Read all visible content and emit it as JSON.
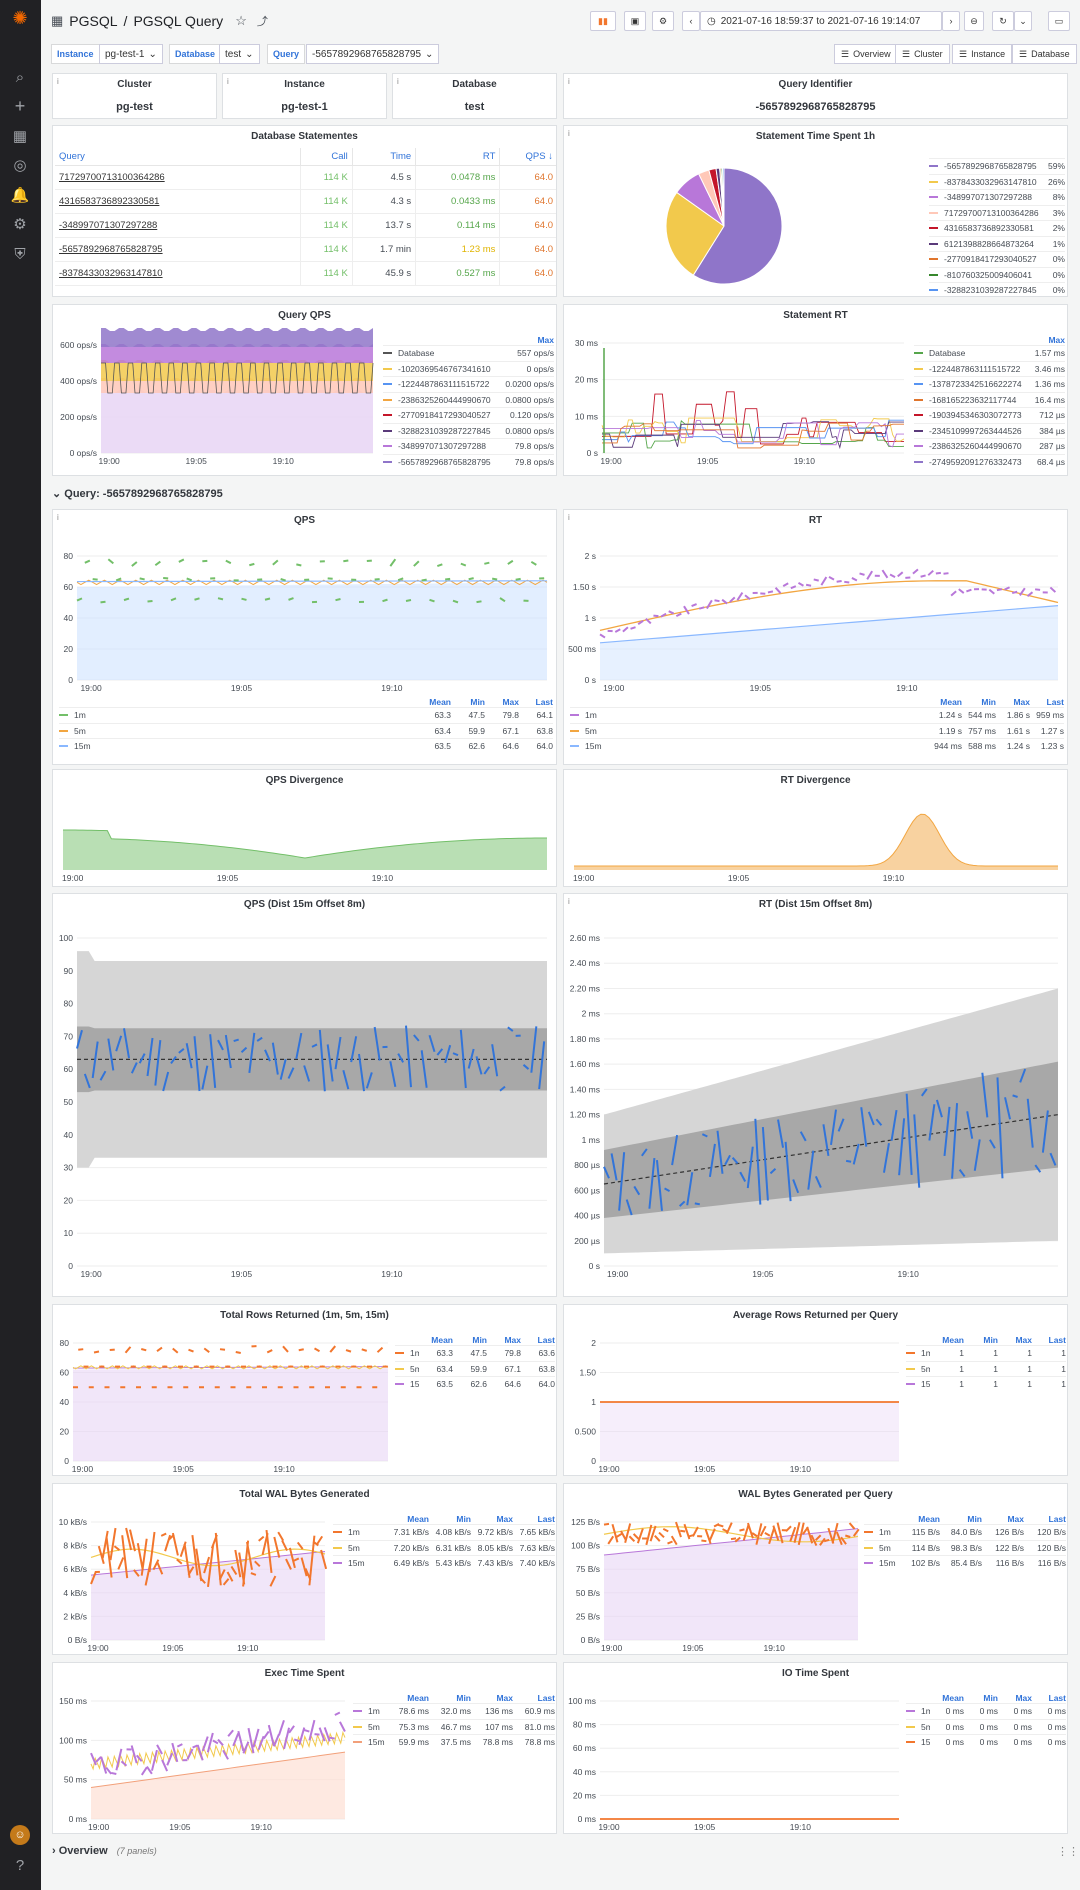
{
  "nav": {
    "breadcrumb_root": "PGSQL",
    "breadcrumb_sep": "/",
    "title": "PGSQL Query",
    "time_range": "2021-07-16 18:59:37 to 2021-07-16 19:14:07"
  },
  "vars": [
    {
      "label": "Instance",
      "value": "pg-test-1"
    },
    {
      "label": "Database",
      "value": "test"
    },
    {
      "label": "Query",
      "value": "-5657892968765828795"
    }
  ],
  "links": [
    "Overview",
    "Cluster",
    "Instance",
    "Database"
  ],
  "stats": [
    {
      "title": "Cluster",
      "value": "pg-test"
    },
    {
      "title": "Instance",
      "value": "pg-test-1"
    },
    {
      "title": "Database",
      "value": "test"
    },
    {
      "title": "Query Identifier",
      "value": "-5657892968765828795"
    }
  ],
  "stmt_table": {
    "title": "Database Statementes",
    "columns": [
      "Query",
      "Call",
      "Time",
      "RT",
      "QPS ↓"
    ],
    "rows": [
      [
        "7172970071310036428​6",
        "114 K",
        "4.5 s",
        "0.0478 ms",
        "64.0"
      ],
      [
        "4316583736892330581",
        "114 K",
        "4.3 s",
        "0.0433 ms",
        "64.0"
      ],
      [
        "-348997071307297288",
        "114 K",
        "13.7 s",
        "0.114 ms",
        "64.0"
      ],
      [
        "-5657892968765828795",
        "114 K",
        "1.7 min",
        "1.23 ms",
        "64.0"
      ],
      [
        "-8378433032963147810",
        "114 K",
        "45.9 s",
        "0.527 ms",
        "64.0"
      ]
    ]
  },
  "pie": {
    "title": "Statement Time Spent 1h",
    "items": [
      [
        "-5657892968765828795",
        "59%",
        "#8f75c9"
      ],
      [
        "-8378433032963147810",
        "26%",
        "#f2c94c"
      ],
      [
        "-348997071307297288",
        "8%",
        "#b877d9"
      ],
      [
        "7172970071310036428​6",
        "3%",
        "#ffc8b8"
      ],
      [
        "4316583736892330581",
        "2%",
        "#c4162a"
      ],
      [
        "6121398828664873264",
        "1%",
        "#5a3a7a"
      ],
      [
        "-2770918417293040527",
        "0%",
        "#e0752d"
      ],
      [
        "-8107603250094060​41",
        "0%",
        "#37872d"
      ],
      [
        "-3288231039287227845",
        "0%",
        "#5794f2"
      ]
    ]
  },
  "qqps": {
    "title": "Query QPS",
    "max": "Max",
    "items": [
      [
        "Database",
        "557 ops/s",
        "#555"
      ],
      [
        "-1020369546767341610",
        "0 ops/s",
        "#f2c94c"
      ],
      [
        "-1224487863111515722",
        "0.0200 ops/s",
        "#5794f2"
      ],
      [
        "-2386325260444990670",
        "0.0800 ops/s",
        "#f2a641"
      ],
      [
        "-2770918417293040527",
        "0.120 ops/s",
        "#c4162a"
      ],
      [
        "-3288231039287227845",
        "0.0800 ops/s",
        "#5a3a7a"
      ],
      [
        "-348997071307297288",
        "79.8 ops/s",
        "#b877d9"
      ],
      [
        "-5657892968765828795",
        "79.8 ops/s",
        "#8f75c9"
      ]
    ],
    "yticks": [
      "600 ops/s",
      "400 ops/s",
      "200 ops/s",
      "0 ops/s"
    ]
  },
  "srt": {
    "title": "Statement RT",
    "max": "Max",
    "items": [
      [
        "Database",
        "1.57 ms",
        "#56a64b"
      ],
      [
        "-1224487863111515722",
        "3.46 ms",
        "#f2c94c"
      ],
      [
        "-1378723342516622274",
        "1.36 ms",
        "#5794f2"
      ],
      [
        "-1681652236321​17744",
        "16.4 ms",
        "#e0752d"
      ],
      [
        "-1903945346303072773",
        "712 µs",
        "#c4162a"
      ],
      [
        "-2345109997263444526",
        "384 µs",
        "#5a3a7a"
      ],
      [
        "-2386325260444990670",
        "287 µs",
        "#b877d9"
      ],
      [
        "-2749592091276332473",
        "68.4 µs",
        "#8f75c9"
      ]
    ],
    "yticks": [
      "30 ms",
      "20 ms",
      "10 ms",
      "0 s"
    ]
  },
  "xticks": [
    "19:00",
    "19:05",
    "19:10"
  ],
  "section": {
    "title": "Query: -5657892968765828795",
    "collapsed_title": "Overview",
    "collapsed_count": "(7 panels)"
  },
  "qps": {
    "title": "QPS",
    "yticks": [
      "80",
      "60",
      "40",
      "20",
      "0"
    ],
    "head": [
      "Mean",
      "Min",
      "Max",
      "Last"
    ],
    "rows": [
      [
        "1m",
        "63.3",
        "47.5",
        "79.8",
        "64.1",
        "#73bf69"
      ],
      [
        "5m",
        "63.4",
        "59.9",
        "67.1",
        "63.8",
        "#f2a641"
      ],
      [
        "15m",
        "63.5",
        "62.6",
        "64.6",
        "64.0",
        "#8ab8ff"
      ]
    ]
  },
  "rt": {
    "title": "RT",
    "yticks": [
      "2 s",
      "1.50 s",
      "1 s",
      "500 ms",
      "0 s"
    ],
    "head": [
      "Mean",
      "Min",
      "Max",
      "Last"
    ],
    "rows": [
      [
        "1m",
        "1.24 s",
        "544 ms",
        "1.86 s",
        "959 ms",
        "#b877d9"
      ],
      [
        "5m",
        "1.19 s",
        "757 ms",
        "1.61 s",
        "1.27 s",
        "#f2a641"
      ],
      [
        "15m",
        "944 ms",
        "588 ms",
        "1.24 s",
        "1.23 s",
        "#8ab8ff"
      ]
    ]
  },
  "qpsdiv": {
    "title": "QPS Divergence"
  },
  "rtdiv": {
    "title": "RT Divergence"
  },
  "qpsdist": {
    "title": "QPS (Dist 15m Offset 8m)",
    "yticks": [
      "100",
      "90",
      "80",
      "70",
      "60",
      "50",
      "40",
      "30",
      "20",
      "10",
      "0"
    ]
  },
  "rtdist": {
    "title": "RT (Dist 15m Offset 8m)",
    "yticks": [
      "2.60 ms",
      "2.40 ms",
      "2.20 ms",
      "2 ms",
      "1.80 ms",
      "1.60 ms",
      "1.40 ms",
      "1.20 ms",
      "1 ms",
      "800 µs",
      "600 µs",
      "400 µs",
      "200 µs",
      "0 s"
    ]
  },
  "rows_total": {
    "title": "Total Rows Returned (1m, 5m, 15m)",
    "yticks": [
      "80",
      "60",
      "40",
      "20",
      "0"
    ],
    "head": [
      "Mean",
      "Min",
      "Max",
      "Last"
    ],
    "rows": [
      [
        "1m",
        "63.3",
        "47.5",
        "79.8",
        "63.6",
        "#f2762d"
      ],
      [
        "5m",
        "63.4",
        "59.9",
        "67.1",
        "63.8",
        "#f2c94c"
      ],
      [
        "15m",
        "63.5",
        "62.6",
        "64.6",
        "64.0",
        "#b877d9"
      ]
    ]
  },
  "rows_avg": {
    "title": "Average Rows Returned per Query",
    "yticks": [
      "2",
      "1.50",
      "1",
      "0.500",
      "0"
    ],
    "head": [
      "Mean",
      "Min",
      "Max",
      "Last"
    ],
    "rows": [
      [
        "1m",
        "1",
        "1",
        "1",
        "1",
        "#f2762d"
      ],
      [
        "5m",
        "1",
        "1",
        "1",
        "1",
        "#f2c94c"
      ],
      [
        "15m",
        "1",
        "1",
        "1",
        "1",
        "#b877d9"
      ]
    ]
  },
  "wal_total": {
    "title": "Total WAL Bytes Generated",
    "yticks": [
      "10 kB/s",
      "8 kB/s",
      "6 kB/s",
      "4 kB/s",
      "2 kB/s",
      "0 B/s"
    ],
    "head": [
      "Mean",
      "Min",
      "Max",
      "Last"
    ],
    "rows": [
      [
        "1m",
        "7.31 kB/s",
        "4.08 kB/s",
        "9.72 kB/s",
        "7.65 kB/s",
        "#f2762d"
      ],
      [
        "5m",
        "7.20 kB/s",
        "6.31 kB/s",
        "8.05 kB/s",
        "7.63 kB/s",
        "#f2c94c"
      ],
      [
        "15m",
        "6.49 kB/s",
        "5.43 kB/s",
        "7.43 kB/s",
        "7.40 kB/s",
        "#b877d9"
      ]
    ]
  },
  "wal_avg": {
    "title": "WAL Bytes Generated per Query",
    "yticks": [
      "125 B/s",
      "100 B/s",
      "75 B/s",
      "50 B/s",
      "25 B/s",
      "0 B/s"
    ],
    "head": [
      "Mean",
      "Min",
      "Max",
      "Last"
    ],
    "rows": [
      [
        "1m",
        "115 B/s",
        "84.0 B/s",
        "126 B/s",
        "120 B/s",
        "#f2762d"
      ],
      [
        "5m",
        "114 B/s",
        "98.3 B/s",
        "122 B/s",
        "120 B/s",
        "#f2c94c"
      ],
      [
        "15m",
        "102 B/s",
        "85.4 B/s",
        "116 B/s",
        "116 B/s",
        "#b877d9"
      ]
    ]
  },
  "exec": {
    "title": "Exec Time Spent",
    "yticks": [
      "150 ms",
      "100 ms",
      "50 ms",
      "0 ms"
    ],
    "head": [
      "Mean",
      "Min",
      "Max",
      "Last"
    ],
    "rows": [
      [
        "1m",
        "78.6 ms",
        "32.0 ms",
        "136 ms",
        "60.9 ms",
        "#b877d9"
      ],
      [
        "5m",
        "75.3 ms",
        "46.7 ms",
        "107 ms",
        "81.0 ms",
        "#f2c94c"
      ],
      [
        "15m",
        "59.9 ms",
        "37.5 ms",
        "78.8 ms",
        "78.8 ms",
        "#f2a07a"
      ]
    ]
  },
  "io": {
    "title": "IO Time Spent",
    "yticks": [
      "100 ms",
      "80 ms",
      "60 ms",
      "40 ms",
      "20 ms",
      "0 ms"
    ],
    "head": [
      "Mean",
      "Min",
      "Max",
      "Last"
    ],
    "rows": [
      [
        "1m",
        "0 ms",
        "0 ms",
        "0 ms",
        "0 ms",
        "#b877d9"
      ],
      [
        "5m",
        "0 ms",
        "0 ms",
        "0 ms",
        "0 ms",
        "#f2c94c"
      ],
      [
        "15m",
        "0 ms",
        "0 ms",
        "0 ms",
        "0 ms",
        "#f2762d"
      ]
    ]
  }
}
